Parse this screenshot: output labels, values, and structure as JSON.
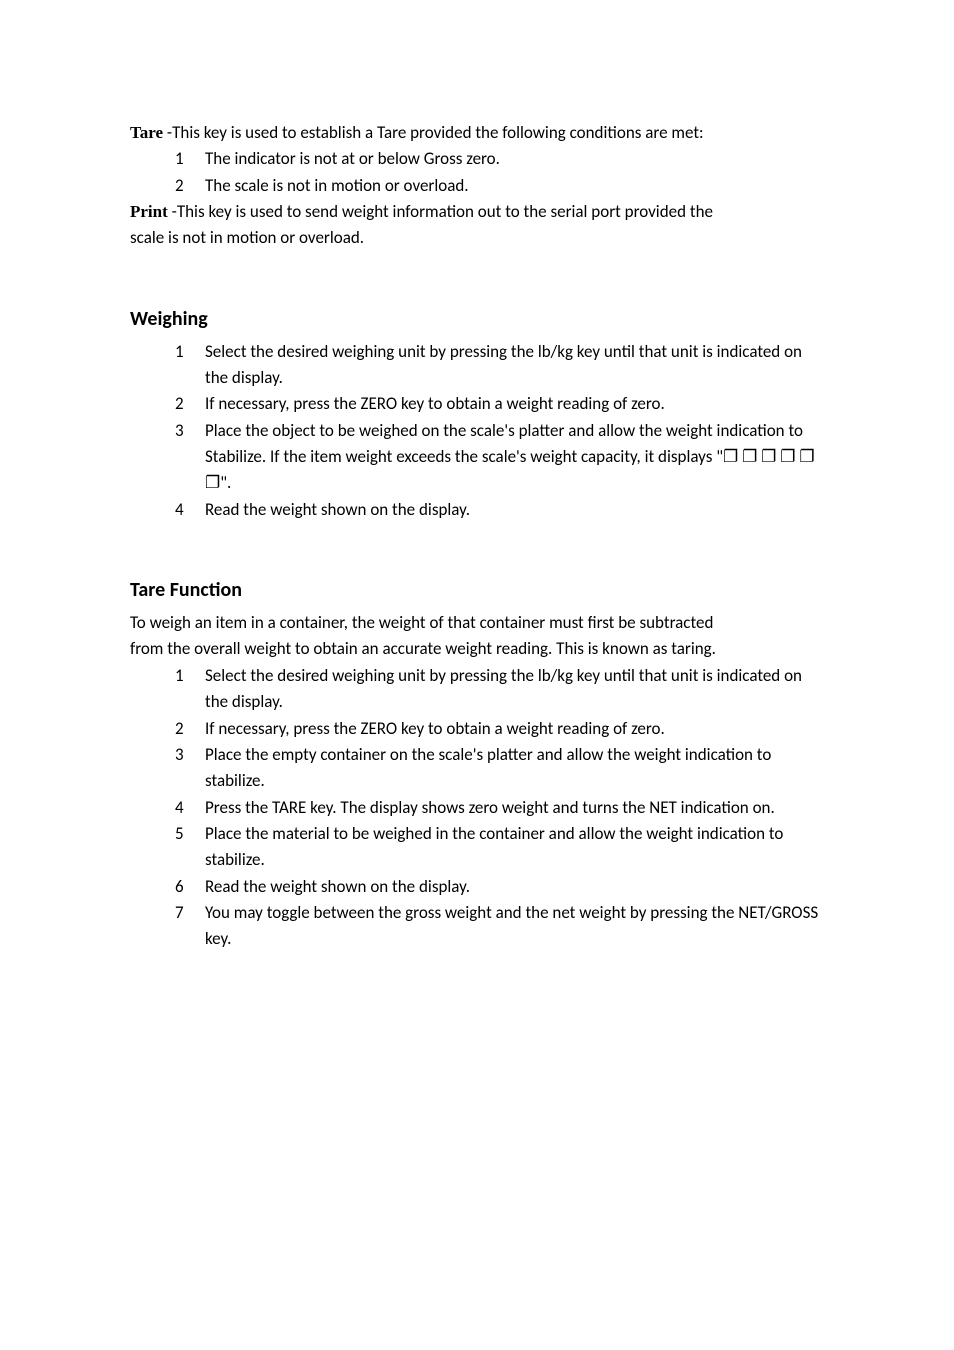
{
  "tare_key": {
    "label": "Tare",
    "desc": " -This key is used to establish a Tare provided the following conditions are met:",
    "conds": [
      "The indicator is not at or below Gross zero.",
      "The scale is not in motion or overload."
    ]
  },
  "print_key": {
    "label": "Print",
    "line1": " -This key is used to send weight information out to the serial port provided the",
    "line2": "scale is not in motion or overload."
  },
  "weighing": {
    "heading": "Weighing",
    "items": [
      "Select the desired weighing unit by pressing the lb/kg key until that unit is indicated on the display.",
      "If necessary, press the ZERO key to obtain a weight reading of zero.",
      "Place the object to be weighed on the scale's platter and allow the weight indication to Stabilize. If the item weight exceeds the scale's weight capacity, it displays \"❐ ❐ ❐ ❐ ❐ ❐\".",
      "Read the weight shown on the display."
    ]
  },
  "tare_func": {
    "heading": "Tare Function",
    "intro1": "To weigh an item in a container, the weight of that container must first be subtracted",
    "intro2": "from the overall weight to obtain an accurate weight reading. This is known as taring.",
    "items": [
      "Select the desired weighing unit by pressing the lb/kg key until that unit is indicated on the display.",
      "If necessary, press the ZERO key to obtain a weight reading of zero.",
      "Place the empty container on the scale's platter and allow the weight indication to stabilize.",
      "Press the TARE key. The display shows zero weight and turns the NET indication on.",
      "Place the material to be weighed in the container and allow the weight indication to stabilize.",
      "Read the weight shown on the display.",
      "You may toggle between the gross weight and the net weight by pressing the NET/GROSS key."
    ]
  }
}
